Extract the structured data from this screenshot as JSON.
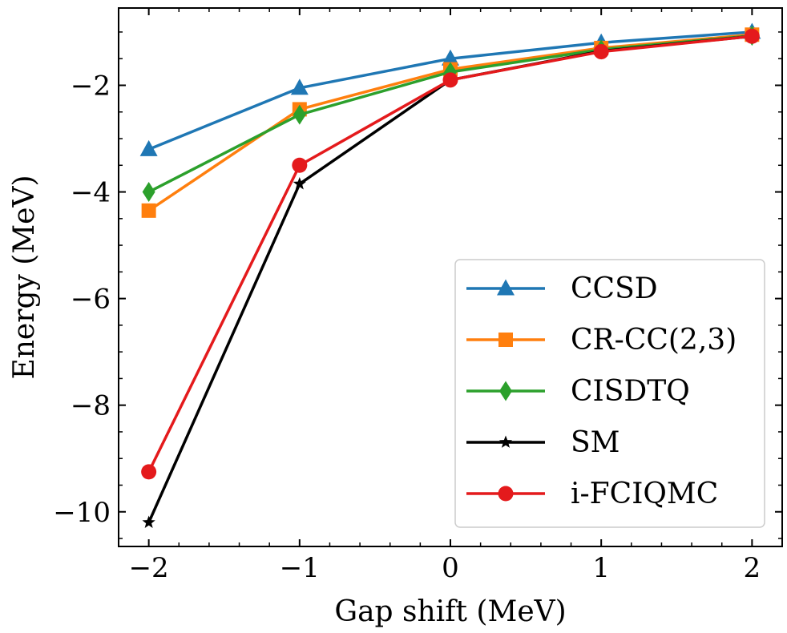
{
  "chart_data": {
    "type": "line",
    "title": "",
    "xlabel": "Gap shift (MeV)",
    "ylabel": "Energy (MeV)",
    "xlim": [
      -2.2,
      2.2
    ],
    "ylim": [
      -10.65,
      -0.55
    ],
    "x": [
      -2,
      -1,
      0,
      1,
      2
    ],
    "x_tick_labels": [
      "−2",
      "−1",
      "0",
      "1",
      "2"
    ],
    "y_ticks": [
      -10,
      -8,
      -6,
      -4,
      -2
    ],
    "y_tick_labels": [
      "−10",
      "−8",
      "−6",
      "−4",
      "−2"
    ],
    "grid": false,
    "legend_position": "lower-right",
    "series": [
      {
        "name": "CCSD",
        "color": "#1f77b4",
        "marker": "triangle",
        "values": [
          -3.2,
          -2.05,
          -1.5,
          -1.2,
          -1.0
        ]
      },
      {
        "name": "CR-CC(2,3)",
        "color": "#ff7f0e",
        "marker": "square",
        "values": [
          -4.35,
          -2.45,
          -1.7,
          -1.3,
          -1.05
        ]
      },
      {
        "name": "CISDTQ",
        "color": "#2ca02c",
        "marker": "diamond",
        "values": [
          -4.0,
          -2.55,
          -1.75,
          -1.33,
          -1.07
        ]
      },
      {
        "name": "SM",
        "color": "#000000",
        "marker": "star",
        "values": [
          -10.2,
          -3.85,
          -1.9,
          -1.36,
          -1.08
        ]
      },
      {
        "name": "i-FCIQMC",
        "color": "#e41a1c",
        "marker": "circle",
        "values": [
          -9.25,
          -3.5,
          -1.9,
          -1.37,
          -1.08
        ]
      }
    ]
  }
}
